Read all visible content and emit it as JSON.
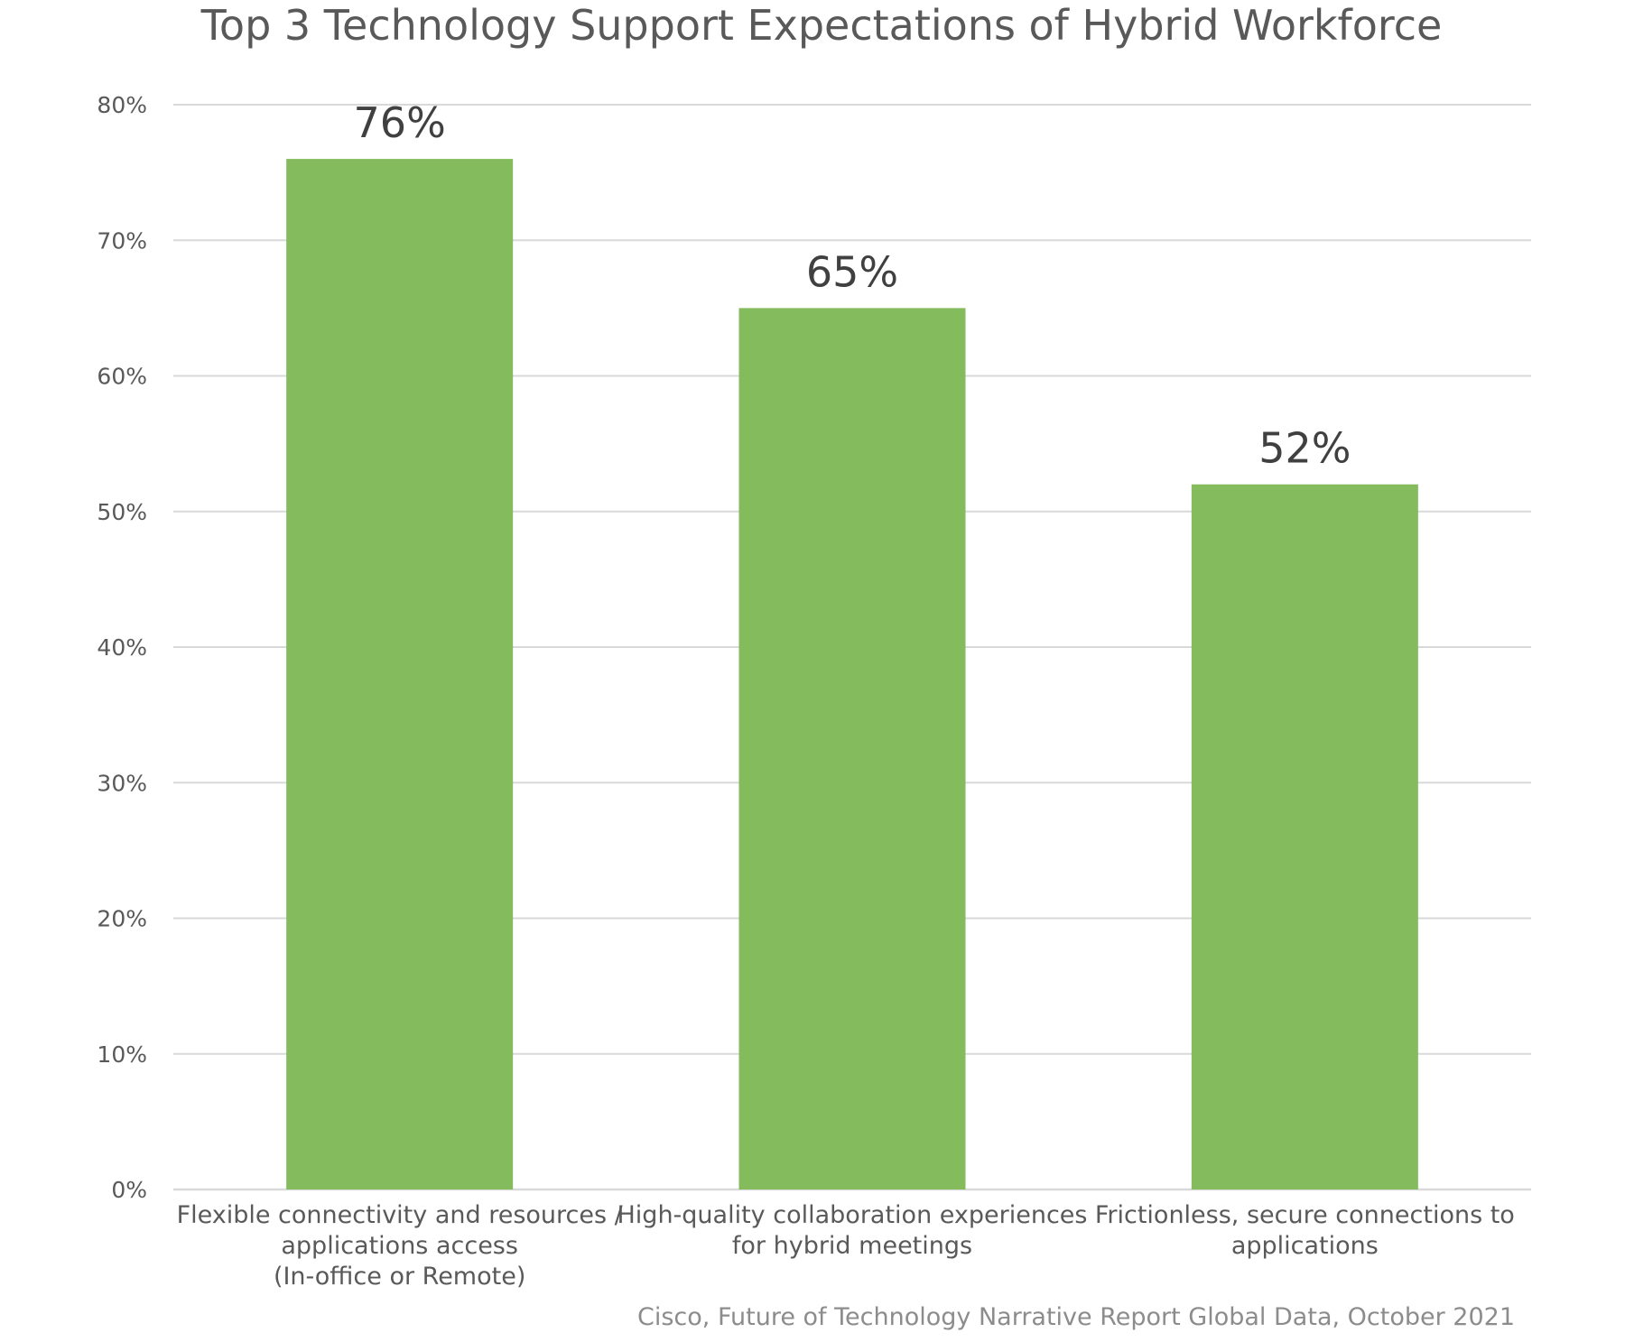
{
  "chart_data": {
    "type": "bar",
    "title": "Top 3 Technology Support Expectations of Hybrid Workforce",
    "categories": [
      [
        "Flexible connectivity and  resources /",
        "applications access",
        "(In-office or Remote)"
      ],
      [
        "High-quality collaboration experiences",
        "for hybrid meetings"
      ],
      [
        "Frictionless, secure connections to",
        "applications"
      ]
    ],
    "values": [
      76,
      65,
      52
    ],
    "data_labels": [
      "76%",
      "65%",
      "52%"
    ],
    "y_ticks": [
      "0%",
      "10%",
      "20%",
      "30%",
      "40%",
      "50%",
      "60%",
      "70%",
      "80%"
    ],
    "ylim": [
      0,
      80
    ],
    "grid": true,
    "legend": "none",
    "bar_color": "#84bb5c",
    "source": "Cisco, Future of Technology Narrative Report Global Data, October 2021"
  }
}
